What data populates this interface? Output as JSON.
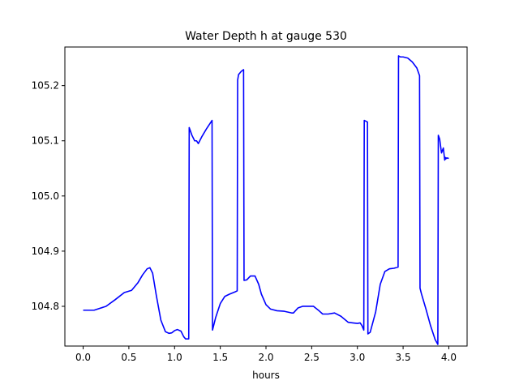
{
  "chart_data": {
    "type": "line",
    "title": "Water Depth h at gauge 530",
    "xlabel": "hours",
    "ylabel": "",
    "xlim": [
      -0.2,
      4.2
    ],
    "ylim": [
      104.728,
      105.27
    ],
    "xticks": [
      0.0,
      0.5,
      1.0,
      1.5,
      2.0,
      2.5,
      3.0,
      3.5,
      4.0
    ],
    "xtick_labels": [
      "0.0",
      "0.5",
      "1.0",
      "1.5",
      "2.0",
      "2.5",
      "3.0",
      "3.5",
      "4.0"
    ],
    "yticks": [
      104.8,
      104.9,
      105.0,
      105.1,
      105.2
    ],
    "ytick_labels": [
      "104.8",
      "104.9",
      "105.0",
      "105.1",
      "105.2"
    ],
    "grid": false,
    "series": [
      {
        "color": "#0000ff",
        "x": [
          0.0,
          0.12,
          0.25,
          0.35,
          0.45,
          0.53,
          0.6,
          0.65,
          0.7,
          0.73,
          0.76,
          0.8,
          0.85,
          0.9,
          0.94,
          0.97,
          1.0,
          1.03,
          1.07,
          1.1,
          1.12,
          1.155,
          1.16,
          1.19,
          1.22,
          1.24,
          1.26,
          1.3,
          1.35,
          1.41,
          1.415,
          1.45,
          1.5,
          1.55,
          1.6,
          1.66,
          1.685,
          1.69,
          1.7,
          1.73,
          1.755,
          1.76,
          1.79,
          1.83,
          1.88,
          1.92,
          1.95,
          2.0,
          2.05,
          2.12,
          2.2,
          2.28,
          2.3,
          2.35,
          2.4,
          2.45,
          2.52,
          2.58,
          2.62,
          2.68,
          2.75,
          2.82,
          2.9,
          2.95,
          3.0,
          3.03,
          3.05,
          3.07,
          3.075,
          3.11,
          3.115,
          3.14,
          3.2,
          3.25,
          3.3,
          3.35,
          3.4,
          3.445,
          3.45,
          3.47,
          3.5,
          3.55,
          3.6,
          3.65,
          3.68,
          3.685,
          3.7,
          3.75,
          3.8,
          3.85,
          3.88,
          3.885,
          3.9,
          3.92,
          3.94,
          3.955,
          3.96,
          3.965,
          3.97,
          3.975,
          3.98,
          4.0
        ],
        "y": [
          104.793,
          104.793,
          104.8,
          104.812,
          104.825,
          104.829,
          104.843,
          104.857,
          104.868,
          104.87,
          104.86,
          104.82,
          104.775,
          104.754,
          104.751,
          104.752,
          104.756,
          104.758,
          104.755,
          104.745,
          104.741,
          104.741,
          105.124,
          105.11,
          105.1,
          105.1,
          105.095,
          105.108,
          105.122,
          105.137,
          104.757,
          104.78,
          104.805,
          104.818,
          104.822,
          104.826,
          104.828,
          105.21,
          105.22,
          105.226,
          105.229,
          104.847,
          104.848,
          104.855,
          104.855,
          104.84,
          104.822,
          104.803,
          104.795,
          104.792,
          104.791,
          104.788,
          104.788,
          104.797,
          104.8,
          104.8,
          104.8,
          104.792,
          104.786,
          104.786,
          104.788,
          104.782,
          104.771,
          104.77,
          104.769,
          104.77,
          104.765,
          104.757,
          105.137,
          105.134,
          104.75,
          104.753,
          104.79,
          104.84,
          104.863,
          104.868,
          104.869,
          104.871,
          105.254,
          105.252,
          105.252,
          105.25,
          105.243,
          105.232,
          105.218,
          104.833,
          104.823,
          104.795,
          104.765,
          104.74,
          104.731,
          105.11,
          105.103,
          105.078,
          105.087,
          105.065,
          105.07,
          105.067,
          105.069,
          105.068,
          105.069,
          105.068
        ]
      }
    ]
  }
}
